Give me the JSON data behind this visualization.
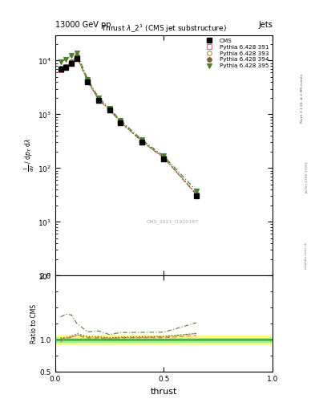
{
  "title_top": "13000 GeV pp",
  "title_right": "Jets",
  "plot_title": "Thrust $\\lambda$_2$^1$ (CMS jet substructure)",
  "watermark": "CMS_2021_I1920187",
  "rivet_text": "Rivet 3.1.10, ≥ 2.9M events",
  "arxiv_text": "[arXiv:1306.3436]",
  "mcplots_text": "mcplots.cern.ch",
  "xlabel": "thrust",
  "ylabel_ratio": "Ratio to CMS",
  "cms_x": [
    0.025,
    0.05,
    0.075,
    0.1,
    0.15,
    0.2,
    0.25,
    0.3,
    0.4,
    0.5,
    0.65
  ],
  "cms_y": [
    7000,
    7500,
    9000,
    11000,
    4000,
    1800,
    1200,
    700,
    300,
    150,
    30
  ],
  "py391_x": [
    0.025,
    0.05,
    0.075,
    0.1,
    0.15,
    0.2,
    0.25,
    0.3,
    0.4,
    0.5,
    0.65
  ],
  "py391_y": [
    6800,
    7700,
    9300,
    11800,
    4100,
    1850,
    1220,
    720,
    310,
    155,
    32
  ],
  "py393_x": [
    0.025,
    0.05,
    0.075,
    0.1,
    0.15,
    0.2,
    0.25,
    0.3,
    0.4,
    0.5,
    0.65
  ],
  "py393_y": [
    7100,
    7700,
    9400,
    11900,
    4150,
    1870,
    1230,
    725,
    312,
    157,
    33
  ],
  "py394_x": [
    0.025,
    0.05,
    0.075,
    0.1,
    0.15,
    0.2,
    0.25,
    0.3,
    0.4,
    0.5,
    0.65
  ],
  "py394_y": [
    7200,
    7800,
    9500,
    12100,
    4200,
    1890,
    1240,
    730,
    315,
    158,
    33
  ],
  "py395_x": [
    0.025,
    0.05,
    0.075,
    0.1,
    0.15,
    0.2,
    0.25,
    0.3,
    0.4,
    0.5,
    0.65
  ],
  "py395_y": [
    9500,
    10500,
    12500,
    13800,
    4500,
    2050,
    1300,
    780,
    335,
    168,
    38
  ],
  "color_391": "#c87090",
  "color_393": "#a09040",
  "color_394": "#806030",
  "color_395": "#508030",
  "ylim_main": [
    1,
    30000
  ],
  "ylim_ratio": [
    0.5,
    2.0
  ],
  "xlim": [
    0.0,
    1.0
  ],
  "ratio_band_green_lo": 0.97,
  "ratio_band_green_hi": 1.03,
  "ratio_band_yellow_lo": 0.93,
  "ratio_band_yellow_hi": 1.07,
  "ratio_391": [
    0.97,
    1.027,
    1.033,
    1.073,
    1.025,
    1.028,
    1.017,
    1.029,
    1.033,
    1.033,
    1.067
  ],
  "ratio_393": [
    1.014,
    1.027,
    1.044,
    1.082,
    1.038,
    1.039,
    1.025,
    1.036,
    1.04,
    1.047,
    1.1
  ],
  "ratio_394": [
    1.029,
    1.04,
    1.056,
    1.1,
    1.05,
    1.05,
    1.033,
    1.043,
    1.05,
    1.053,
    1.1
  ],
  "ratio_395": [
    1.357,
    1.4,
    1.389,
    1.255,
    1.125,
    1.139,
    1.083,
    1.114,
    1.117,
    1.12,
    1.267
  ]
}
